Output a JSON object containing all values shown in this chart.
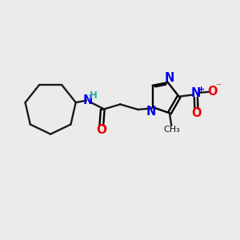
{
  "bg_color": "#ebebeb",
  "bond_color": "#1a1a1a",
  "N_color": "#0000ee",
  "O_color": "#ee0000",
  "NH_color": "#2aadad",
  "figsize": [
    3.0,
    3.0
  ],
  "dpi": 100,
  "xlim": [
    0,
    10
  ],
  "ylim": [
    0,
    10
  ]
}
